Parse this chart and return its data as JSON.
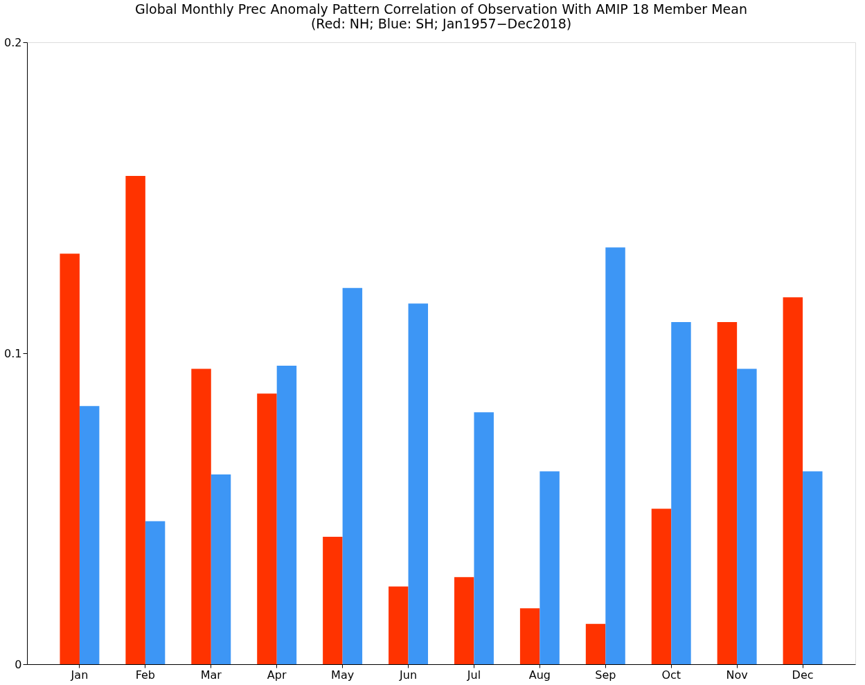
{
  "chart_data": {
    "type": "bar",
    "title": "Global Monthly Prec Anomaly Pattern Correlation of Observation With AMIP 18 Member Mean",
    "subtitle": "(Red: NH; Blue: SH; Jan1957−Dec2018)",
    "categories": [
      "Jan",
      "Feb",
      "Mar",
      "Apr",
      "May",
      "Jun",
      "Jul",
      "Aug",
      "Sep",
      "Oct",
      "Nov",
      "Dec"
    ],
    "series": [
      {
        "color": "#ff3300",
        "values": [
          0.132,
          0.157,
          0.095,
          0.087,
          0.041,
          0.025,
          0.028,
          0.018,
          0.013,
          0.05,
          0.11,
          0.118
        ]
      },
      {
        "color": "#3d96f5",
        "values": [
          0.083,
          0.046,
          0.061,
          0.096,
          0.121,
          0.116,
          0.081,
          0.062,
          0.134,
          0.11,
          0.095,
          0.062
        ]
      }
    ],
    "ylim": [
      0,
      0.2
    ],
    "yticks": [
      0,
      0.1,
      0.2
    ],
    "grid": false,
    "legend": false
  }
}
